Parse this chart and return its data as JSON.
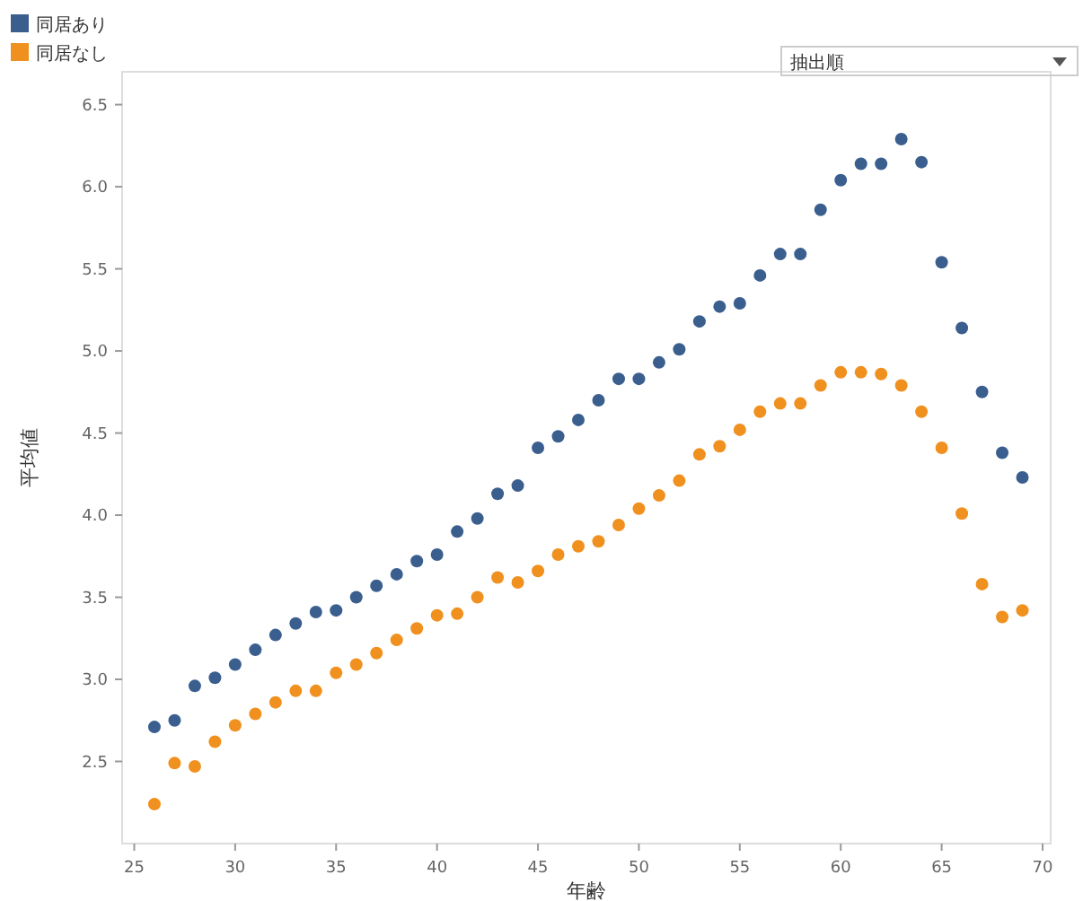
{
  "chart_data": {
    "type": "scatter",
    "xlabel": "年齢",
    "ylabel": "平均値",
    "annotations": [
      "抽出順"
    ],
    "legend": "top left",
    "marker": "circle",
    "grid": false,
    "x": [
      26,
      27,
      28,
      29,
      30,
      31,
      32,
      33,
      34,
      35,
      36,
      37,
      38,
      39,
      40,
      41,
      42,
      43,
      44,
      45,
      46,
      47,
      48,
      49,
      50,
      51,
      52,
      53,
      54,
      55,
      56,
      57,
      58,
      59,
      60,
      61,
      62,
      63,
      64,
      65,
      66,
      67,
      68,
      69
    ],
    "xlim": [
      24.4,
      70.4
    ],
    "xticks": [
      25,
      30,
      35,
      40,
      45,
      50,
      55,
      60,
      65,
      70
    ],
    "ylim": [
      2.0,
      6.7
    ],
    "yticks": [
      {
        "value": 2.5,
        "label": "2.5"
      },
      {
        "value": 3,
        "label": "3.0"
      },
      {
        "value": 3.5,
        "label": "3.5"
      },
      {
        "value": 4,
        "label": "4.0"
      },
      {
        "value": 4.5,
        "label": "4.5"
      },
      {
        "value": 5,
        "label": "5.0"
      },
      {
        "value": 5.5,
        "label": "5.5"
      },
      {
        "value": 6,
        "label": "6.0"
      },
      {
        "value": 6.5,
        "label": "6.5"
      }
    ],
    "series": [
      {
        "name": "同居あり",
        "color": "#3a5f8f",
        "values": [
          2.71,
          2.75,
          2.96,
          3.01,
          3.09,
          3.18,
          3.27,
          3.34,
          3.41,
          3.42,
          3.5,
          3.57,
          3.64,
          3.72,
          3.76,
          3.9,
          3.98,
          4.13,
          4.18,
          4.41,
          4.48,
          4.58,
          4.7,
          4.83,
          4.83,
          4.93,
          5.01,
          5.18,
          5.27,
          5.29,
          5.46,
          5.59,
          5.59,
          5.86,
          6.04,
          6.14,
          6.14,
          6.29,
          6.15,
          5.54,
          5.14,
          4.75,
          4.38,
          4.23
        ]
      },
      {
        "name": "同居なし",
        "color": "#f0901e",
        "values": [
          2.24,
          2.49,
          2.47,
          2.62,
          2.72,
          2.79,
          2.86,
          2.93,
          2.93,
          3.04,
          3.09,
          3.16,
          3.24,
          3.31,
          3.39,
          3.4,
          3.5,
          3.62,
          3.59,
          3.66,
          3.76,
          3.81,
          3.84,
          3.94,
          4.04,
          4.12,
          4.21,
          4.37,
          4.42,
          4.52,
          4.63,
          4.68,
          4.68,
          4.79,
          4.87,
          4.87,
          4.86,
          4.79,
          4.63,
          4.41,
          4.01,
          3.58,
          3.38,
          3.42
        ]
      }
    ]
  }
}
